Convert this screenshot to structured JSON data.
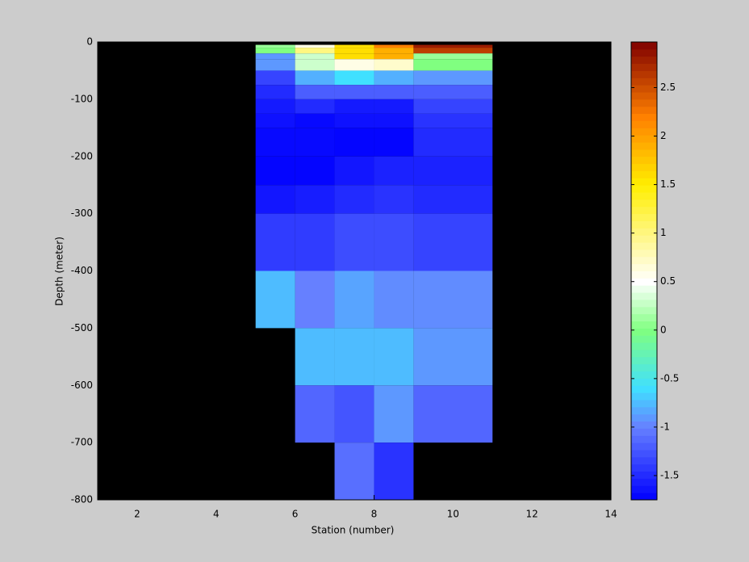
{
  "chart_data": {
    "type": "heatmap",
    "xlabel": "Station (number)",
    "ylabel": "Depth (meter)",
    "xlim": [
      1,
      14
    ],
    "ylim": [
      -800,
      0
    ],
    "xticks": [
      2,
      4,
      6,
      8,
      10,
      12,
      14
    ],
    "yticks": [
      0,
      -100,
      -200,
      -300,
      -400,
      -500,
      -600,
      -700,
      -800
    ],
    "x_edges": [
      5,
      6,
      7,
      8,
      9,
      11
    ],
    "y_edges": [
      -5,
      -10,
      -20,
      -30,
      -50,
      -75,
      -100,
      -125,
      -150,
      -200,
      -250,
      -300,
      -400,
      -500,
      -600,
      -700,
      -800
    ],
    "values": [
      [
        0.1,
        0.6,
        1.6,
        2.2,
        2.8
      ],
      [
        0.0,
        1.0,
        1.6,
        1.9,
        2.6
      ],
      [
        -0.9,
        0.3,
        1.6,
        1.9,
        0.1
      ],
      [
        -0.9,
        0.3,
        0.6,
        0.7,
        0.0
      ],
      [
        -1.35,
        -0.8,
        -0.6,
        -0.8,
        -0.9
      ],
      [
        -1.5,
        -1.2,
        -1.2,
        -1.2,
        -1.2
      ],
      [
        -1.6,
        -1.5,
        -1.6,
        -1.6,
        -1.35
      ],
      [
        -1.65,
        -1.7,
        -1.65,
        -1.65,
        -1.45
      ],
      [
        -1.7,
        -1.7,
        -1.72,
        -1.72,
        -1.5
      ],
      [
        -1.72,
        -1.72,
        -1.62,
        -1.55,
        -1.55
      ],
      [
        -1.62,
        -1.58,
        -1.5,
        -1.45,
        -1.5
      ],
      [
        -1.4,
        -1.4,
        -1.3,
        -1.3,
        -1.35
      ],
      [
        -0.75,
        -1.0,
        -0.85,
        -0.95,
        -0.95
      ],
      [
        null,
        -0.75,
        -0.75,
        -0.75,
        -0.9
      ],
      [
        null,
        -1.15,
        -1.25,
        -0.9,
        -1.15
      ],
      [
        null,
        null,
        -1.1,
        -1.45,
        null
      ]
    ],
    "background_color": "#000000",
    "clim": [
      -1.75,
      2.97
    ],
    "colorbar_ticks": [
      -1.5,
      -1,
      -0.5,
      0,
      0.5,
      1,
      1.5,
      2,
      2.5
    ],
    "colormap": [
      {
        "value": -1.75,
        "color": "#0000ff"
      },
      {
        "value": -1.0,
        "color": "#6680ff"
      },
      {
        "value": -0.6,
        "color": "#40e0ff"
      },
      {
        "value": 0,
        "color": "#80ff80"
      },
      {
        "value": 0.5,
        "color": "#ffffff"
      },
      {
        "value": 1.5,
        "color": "#ffee00"
      },
      {
        "value": 2.2,
        "color": "#ff8000"
      },
      {
        "value": 2.97,
        "color": "#800000"
      }
    ]
  }
}
